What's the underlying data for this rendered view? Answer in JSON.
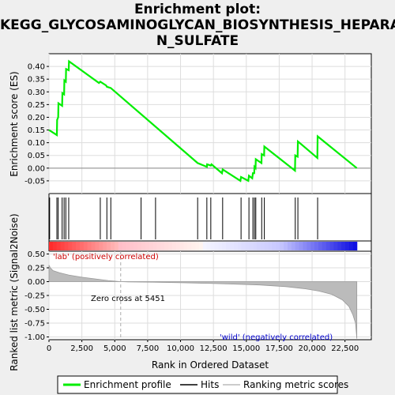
{
  "title_lines": [
    "Enrichment plot:",
    "KEGG_GLYCOSAMINOGLYCAN_BIOSYNTHESIS_HEPARA",
    "N_SULFATE"
  ],
  "labels": {
    "enrichment_y": "Enrichment score (ES)",
    "ranked_y": "Ranked list metric (Signal2Noise)",
    "x": "Rank in Ordered Dataset",
    "pos_label": "'lab' (positively correlated)",
    "neg_label": "'wild' (negatively correlated)",
    "zero_cross": "Zero cross at 5451"
  },
  "legend": {
    "profile": "Enrichment profile",
    "hits": "Hits",
    "ranking": "Ranking metric scores"
  },
  "colors": {
    "profile": "#00ee00",
    "hits": "#000000",
    "ranking": "#bbbbbb",
    "pos_band": "#ff0000",
    "neg_band": "#0000ff"
  },
  "chart_data": [
    {
      "type": "line",
      "name": "enrichment-profile",
      "xlim": [
        0,
        24500
      ],
      "ylim": [
        -0.1,
        0.45
      ],
      "x_ticks": [
        0,
        2500,
        5000,
        7500,
        10000,
        12500,
        15000,
        17500,
        20000,
        22500
      ],
      "y_ticks": [
        -0.05,
        0.0,
        0.05,
        0.1,
        0.15,
        0.2,
        0.25,
        0.3,
        0.35,
        0.4
      ],
      "y_tick_labels": [
        "-0.05",
        "0.00",
        "0.05",
        "0.10",
        "0.15",
        "0.20",
        "0.25",
        "0.30",
        "0.35",
        "0.40"
      ],
      "points": [
        [
          0,
          0.15
        ],
        [
          600,
          0.13
        ],
        [
          620,
          0.19
        ],
        [
          700,
          0.2
        ],
        [
          720,
          0.255
        ],
        [
          1000,
          0.245
        ],
        [
          1020,
          0.295
        ],
        [
          1150,
          0.29
        ],
        [
          1170,
          0.345
        ],
        [
          1280,
          0.34
        ],
        [
          1300,
          0.39
        ],
        [
          1500,
          0.385
        ],
        [
          1520,
          0.42
        ],
        [
          3800,
          0.335
        ],
        [
          3900,
          0.34
        ],
        [
          4350,
          0.325
        ],
        [
          4400,
          0.32
        ],
        [
          4700,
          0.315
        ],
        [
          11300,
          0.02
        ],
        [
          12000,
          0.005
        ],
        [
          12020,
          0.015
        ],
        [
          12300,
          0.01
        ],
        [
          12350,
          0.015
        ],
        [
          13150,
          -0.02
        ],
        [
          13200,
          -0.005
        ],
        [
          14550,
          -0.05
        ],
        [
          14600,
          -0.035
        ],
        [
          15150,
          -0.05
        ],
        [
          15200,
          -0.03
        ],
        [
          15450,
          -0.04
        ],
        [
          15500,
          -0.02
        ],
        [
          15600,
          -0.02
        ],
        [
          15620,
          0.005
        ],
        [
          15700,
          0.0
        ],
        [
          15720,
          0.035
        ],
        [
          16150,
          0.02
        ],
        [
          16170,
          0.055
        ],
        [
          16350,
          0.05
        ],
        [
          16370,
          0.085
        ],
        [
          18700,
          -0.01
        ],
        [
          18720,
          0.05
        ],
        [
          18900,
          0.045
        ],
        [
          18920,
          0.105
        ],
        [
          20400,
          0.04
        ],
        [
          20420,
          0.125
        ],
        [
          23400,
          0.0
        ]
      ]
    },
    {
      "type": "scatter",
      "name": "hits",
      "x": [
        50,
        600,
        700,
        1000,
        1150,
        1280,
        1500,
        3900,
        4400,
        4700,
        7000,
        8100,
        11300,
        12000,
        12300,
        13200,
        14600,
        15200,
        15500,
        15620,
        15720,
        16170,
        16370,
        18720,
        18920,
        20420
      ]
    },
    {
      "type": "area",
      "name": "ranking-metric",
      "xlim": [
        0,
        24500
      ],
      "ylim": [
        -1.05,
        0.55
      ],
      "y_ticks": [
        -1.0,
        -0.75,
        -0.5,
        -0.25,
        0.0,
        0.25,
        0.5
      ],
      "y_tick_labels": [
        "-1.00",
        "-0.75",
        "-0.50",
        "-0.25",
        "0.00",
        "0.25",
        "0.50"
      ],
      "points": [
        [
          0,
          0.3
        ],
        [
          100,
          0.25
        ],
        [
          300,
          0.2
        ],
        [
          800,
          0.16
        ],
        [
          1500,
          0.12
        ],
        [
          2500,
          0.08
        ],
        [
          3500,
          0.05
        ],
        [
          4500,
          0.02
        ],
        [
          5451,
          0.0
        ],
        [
          6000,
          -0.005
        ],
        [
          8000,
          -0.01
        ],
        [
          10000,
          -0.02
        ],
        [
          12000,
          -0.03
        ],
        [
          14000,
          -0.045
        ],
        [
          16000,
          -0.06
        ],
        [
          18000,
          -0.09
        ],
        [
          19500,
          -0.13
        ],
        [
          20500,
          -0.17
        ],
        [
          21500,
          -0.23
        ],
        [
          22300,
          -0.33
        ],
        [
          22800,
          -0.45
        ],
        [
          23100,
          -0.6
        ],
        [
          23300,
          -0.75
        ],
        [
          23400,
          -1.03
        ]
      ],
      "zero_cross": 5451
    }
  ]
}
